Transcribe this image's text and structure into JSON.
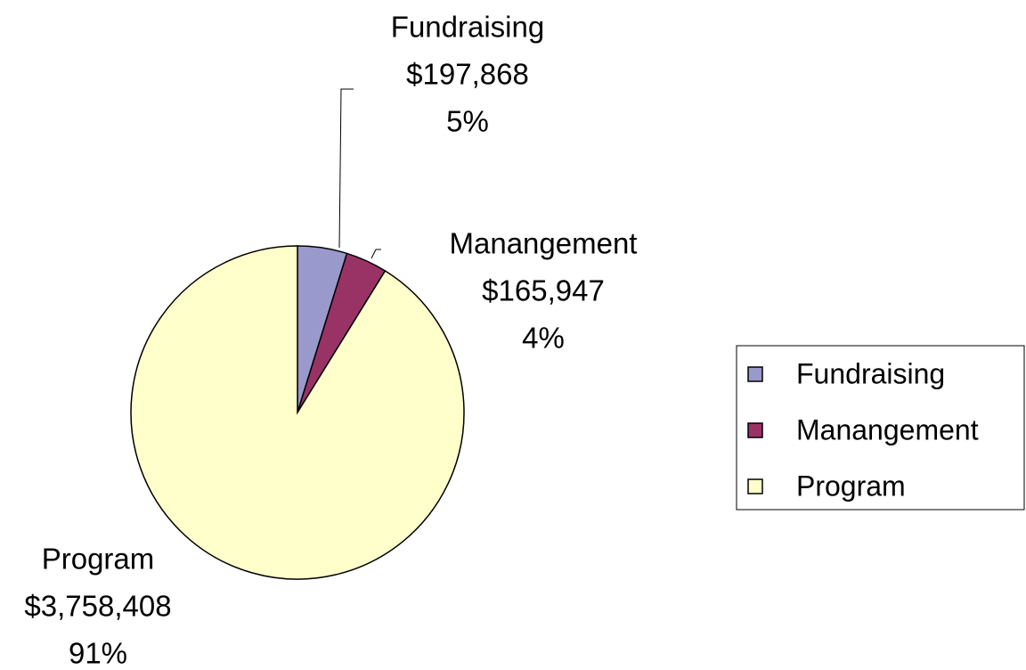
{
  "chart_data": {
    "type": "pie",
    "categories": [
      "Fundraising",
      "Manangement",
      "Program"
    ],
    "values": [
      197868,
      165947,
      3758408
    ],
    "value_labels": [
      "$197,868",
      "$165,947",
      "$3,758,408"
    ],
    "percent_labels": [
      "5%",
      "4%",
      "91%"
    ],
    "colors": [
      "#9999cc",
      "#993366",
      "#ffffcc"
    ],
    "legend": "right"
  }
}
